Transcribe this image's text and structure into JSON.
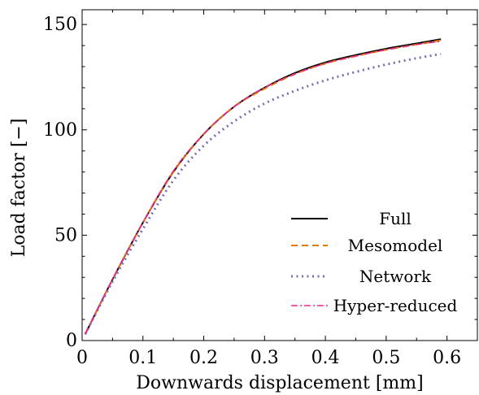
{
  "chart_data": {
    "type": "line",
    "xlabel": "Downwards displacement [mm]",
    "ylabel": "Load factor [−]",
    "xlim": [
      0,
      0.65
    ],
    "ylim": [
      0,
      157
    ],
    "xticks": [
      0,
      0.1,
      0.2,
      0.3,
      0.4,
      0.5,
      0.6
    ],
    "xtick_labels": [
      "0",
      "0.1",
      "0.2",
      "0.3",
      "0.4",
      "0.5",
      "0.6"
    ],
    "yticks": [
      0,
      50,
      100,
      150
    ],
    "ytick_labels": [
      "0",
      "50",
      "100",
      "150"
    ],
    "grid": false,
    "legend_position": "bottom-right",
    "series": [
      {
        "name": "Full",
        "color": "#000000",
        "style": "solid",
        "x": [
          0.005,
          0.05,
          0.1,
          0.15,
          0.2,
          0.25,
          0.3,
          0.35,
          0.4,
          0.45,
          0.5,
          0.55,
          0.59
        ],
        "y": [
          3,
          29,
          56,
          80,
          98,
          111,
          120,
          127,
          132,
          135.5,
          138.5,
          141,
          143
        ]
      },
      {
        "name": "Mesomodel",
        "color": "#e07b00",
        "style": "dashed",
        "x": [
          0.005,
          0.05,
          0.1,
          0.15,
          0.2,
          0.25,
          0.3,
          0.35,
          0.4,
          0.45,
          0.5,
          0.55,
          0.59
        ],
        "y": [
          3,
          29,
          56,
          80,
          98,
          111,
          119.5,
          126.5,
          131.5,
          135,
          138,
          140.5,
          142.5
        ]
      },
      {
        "name": "Network",
        "color": "#7570b3",
        "style": "dotted",
        "x": [
          0.005,
          0.05,
          0.1,
          0.15,
          0.2,
          0.25,
          0.3,
          0.35,
          0.4,
          0.45,
          0.5,
          0.55,
          0.59
        ],
        "y": [
          3,
          28,
          53,
          76,
          92.5,
          104,
          112.5,
          118.5,
          123.5,
          127.5,
          131,
          134,
          136
        ]
      },
      {
        "name": "Hyper-reduced",
        "color": "#e7298a",
        "style": "dashdot",
        "x": [
          0.005,
          0.05,
          0.1,
          0.15,
          0.2,
          0.25,
          0.3,
          0.35,
          0.4,
          0.45,
          0.5,
          0.55,
          0.59
        ],
        "y": [
          3,
          29,
          56,
          80.5,
          98,
          111,
          120,
          126.5,
          131.5,
          135,
          138,
          140.5,
          142
        ]
      }
    ]
  }
}
